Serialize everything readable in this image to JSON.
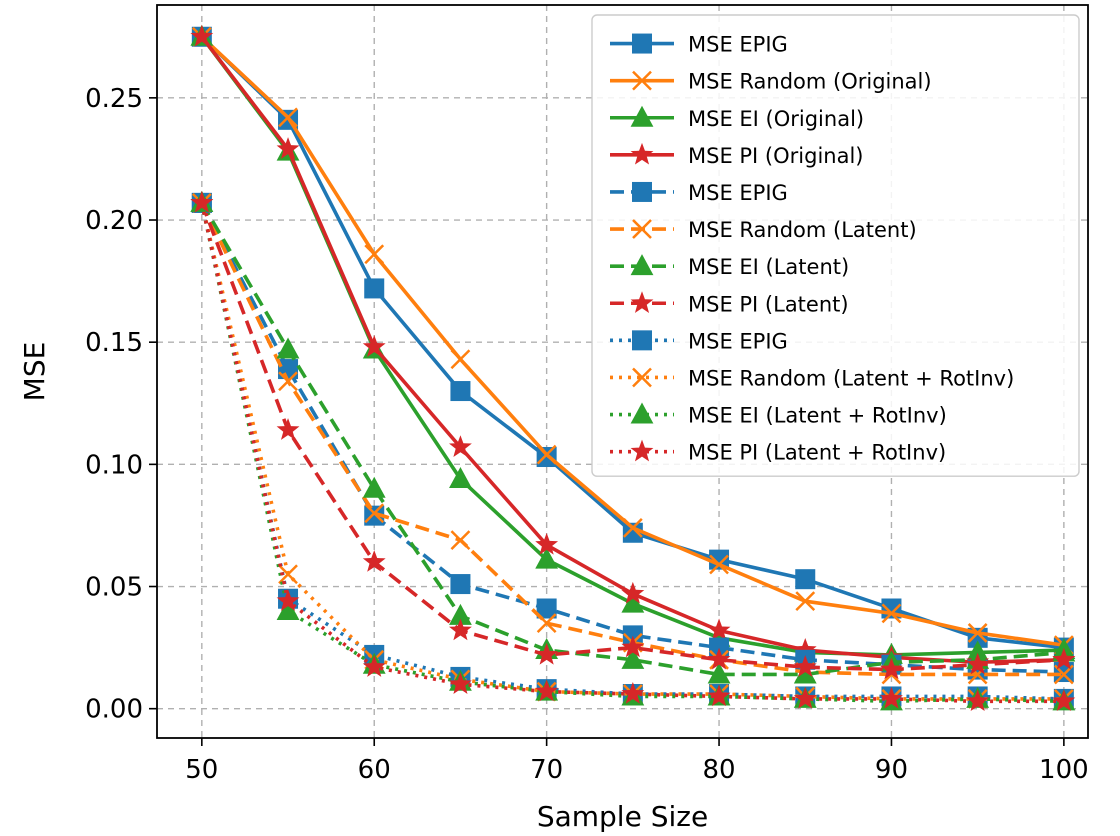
{
  "chart_data": {
    "type": "line",
    "title": "",
    "xlabel": "Sample Size",
    "ylabel": "MSE",
    "xlim": [
      47.4,
      101.4
    ],
    "ylim": [
      -0.012,
      0.288
    ],
    "xticks": [
      50,
      60,
      70,
      80,
      90,
      100
    ],
    "xtick_labels": [
      "50",
      "60",
      "70",
      "80",
      "90",
      "100"
    ],
    "yticks": [
      0.0,
      0.05,
      0.1,
      0.15,
      0.2,
      0.25
    ],
    "ytick_labels": [
      "0.00",
      "0.05",
      "0.10",
      "0.15",
      "0.20",
      "0.25"
    ],
    "grid": true,
    "legend_position": "upper right",
    "x": [
      50,
      55,
      60,
      65,
      70,
      75,
      80,
      85,
      90,
      95,
      100
    ],
    "colors": {
      "EPIG": "#1f77b4",
      "Random": "#ff7f0e",
      "EI": "#2ca02c",
      "PI": "#d62728"
    },
    "series": [
      {
        "name": "MSE EPIG",
        "color": "#1f77b4",
        "marker": "square",
        "line_style": "solid",
        "values": [
          0.275,
          0.241,
          0.172,
          0.13,
          0.103,
          0.072,
          0.061,
          0.053,
          0.041,
          0.029,
          0.025
        ]
      },
      {
        "name": "MSE Random (Original)",
        "color": "#ff7f0e",
        "marker": "x",
        "line_style": "solid",
        "values": [
          0.275,
          0.242,
          0.186,
          0.143,
          0.104,
          0.074,
          0.059,
          0.044,
          0.039,
          0.031,
          0.026
        ]
      },
      {
        "name": "MSE EI (Original)",
        "color": "#2ca02c",
        "marker": "triangle",
        "line_style": "solid",
        "values": [
          0.275,
          0.228,
          0.147,
          0.094,
          0.061,
          0.043,
          0.029,
          0.023,
          0.022,
          0.023,
          0.024
        ]
      },
      {
        "name": "MSE PI (Original)",
        "color": "#d62728",
        "marker": "star",
        "line_style": "solid",
        "values": [
          0.275,
          0.229,
          0.148,
          0.107,
          0.067,
          0.047,
          0.032,
          0.024,
          0.021,
          0.019,
          0.02
        ]
      },
      {
        "name": "MSE EPIG",
        "color": "#1f77b4",
        "marker": "square",
        "line_style": "dashed",
        "values": [
          0.207,
          0.139,
          0.079,
          0.051,
          0.041,
          0.03,
          0.025,
          0.02,
          0.018,
          0.016,
          0.015
        ]
      },
      {
        "name": "MSE Random (Latent)",
        "color": "#ff7f0e",
        "marker": "x",
        "line_style": "dashed",
        "values": [
          0.207,
          0.134,
          0.08,
          0.069,
          0.035,
          0.027,
          0.02,
          0.015,
          0.014,
          0.014,
          0.014
        ]
      },
      {
        "name": "MSE EI (Latent)",
        "color": "#2ca02c",
        "marker": "triangle",
        "line_style": "dashed",
        "values": [
          0.207,
          0.147,
          0.09,
          0.038,
          0.024,
          0.02,
          0.014,
          0.014,
          0.019,
          0.02,
          0.023
        ]
      },
      {
        "name": "MSE PI (Latent)",
        "color": "#d62728",
        "marker": "star",
        "line_style": "dashed",
        "values": [
          0.207,
          0.114,
          0.06,
          0.032,
          0.022,
          0.025,
          0.02,
          0.017,
          0.016,
          0.018,
          0.02
        ]
      },
      {
        "name": "MSE EPIG",
        "color": "#1f77b4",
        "marker": "square",
        "line_style": "dotted",
        "values": [
          0.207,
          0.045,
          0.022,
          0.013,
          0.008,
          0.006,
          0.006,
          0.005,
          0.005,
          0.005,
          0.004
        ]
      },
      {
        "name": "MSE Random (Latent + RotInv)",
        "color": "#ff7f0e",
        "marker": "x",
        "line_style": "dotted",
        "values": [
          0.207,
          0.055,
          0.02,
          0.012,
          0.007,
          0.006,
          0.006,
          0.005,
          0.004,
          0.004,
          0.004
        ]
      },
      {
        "name": "MSE EI (Latent + RotInv)",
        "color": "#2ca02c",
        "marker": "triangle",
        "line_style": "dotted",
        "values": [
          0.207,
          0.04,
          0.018,
          0.011,
          0.007,
          0.005,
          0.005,
          0.004,
          0.003,
          0.004,
          0.003
        ]
      },
      {
        "name": "MSE PI (Latent + RotInv)",
        "color": "#d62728",
        "marker": "star",
        "line_style": "dotted",
        "values": [
          0.207,
          0.044,
          0.017,
          0.01,
          0.007,
          0.006,
          0.005,
          0.004,
          0.004,
          0.003,
          0.003
        ]
      }
    ]
  }
}
